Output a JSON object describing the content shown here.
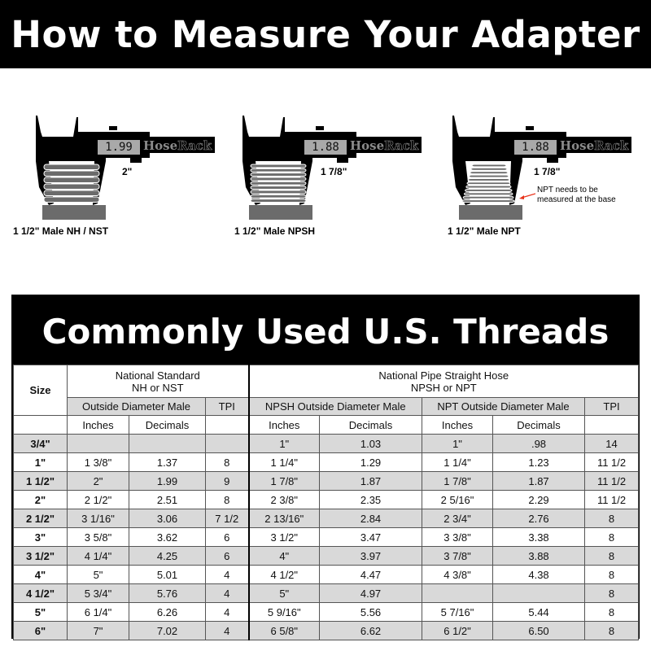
{
  "banner": {
    "title": "How to Measure Your Adapter"
  },
  "calipers": [
    {
      "reading": "1.99",
      "brand_a": "Hose",
      "brand_b": "Rack",
      "measure": "2\"",
      "label": "1 1/2\" Male NH / NST"
    },
    {
      "reading": "1.88",
      "brand_a": "Hose",
      "brand_b": "Rack",
      "measure": "1 7/8\"",
      "label": "1 1/2\" Male NPSH"
    },
    {
      "reading": "1.88",
      "brand_a": "Hose",
      "brand_b": "Rack",
      "measure": "1 7/8\"",
      "label": "1 1/2\" Male NPT",
      "note": "NPT needs to be measured at the base"
    }
  ],
  "colors": {
    "note_arrow": "#e8331c",
    "shade": "#d9d9d9"
  },
  "table": {
    "title": "Commonly Used U.S. Threads",
    "size_header": "Size",
    "group1": {
      "line1": "National Standard",
      "line2": "NH or NST"
    },
    "group2": {
      "line1": "National Pipe Straight Hose",
      "line2": "NPSH or NPT"
    },
    "sub": {
      "od_male": "Outside Diameter Male",
      "tpi1": "TPI",
      "npsh_od": "NPSH Outside Diameter Male",
      "npt_od": "NPT Outside Diameter Male",
      "tpi2": "TPI"
    },
    "units": {
      "in1": "Inches",
      "dec1": "Decimals",
      "in2": "Inches",
      "dec2": "Decimals",
      "in3": "Inches",
      "dec3": "Decimals"
    },
    "rows": [
      [
        "3/4\"",
        "",
        "",
        "",
        "1\"",
        "1.03",
        "1\"",
        ".98",
        "14"
      ],
      [
        "1\"",
        "1 3/8\"",
        "1.37",
        "8",
        "1 1/4\"",
        "1.29",
        "1 1/4\"",
        "1.23",
        "11 1/2"
      ],
      [
        "1 1/2\"",
        "2\"",
        "1.99",
        "9",
        "1 7/8\"",
        "1.87",
        "1 7/8\"",
        "1.87",
        "11 1/2"
      ],
      [
        "2\"",
        "2 1/2\"",
        "2.51",
        "8",
        "2 3/8\"",
        "2.35",
        "2 5/16\"",
        "2.29",
        "11 1/2"
      ],
      [
        "2 1/2\"",
        "3 1/16\"",
        "3.06",
        "7 1/2",
        "2 13/16\"",
        "2.84",
        "2 3/4\"",
        "2.76",
        "8"
      ],
      [
        "3\"",
        "3 5/8\"",
        "3.62",
        "6",
        "3 1/2\"",
        "3.47",
        "3 3/8\"",
        "3.38",
        "8"
      ],
      [
        "3 1/2\"",
        "4 1/4\"",
        "4.25",
        "6",
        "4\"",
        "3.97",
        "3 7/8\"",
        "3.88",
        "8"
      ],
      [
        "4\"",
        "5\"",
        "5.01",
        "4",
        "4 1/2\"",
        "4.47",
        "4 3/8\"",
        "4.38",
        "8"
      ],
      [
        "4 1/2\"",
        "5 3/4\"",
        "5.76",
        "4",
        "5\"",
        "4.97",
        "",
        "",
        "8"
      ],
      [
        "5\"",
        "6 1/4\"",
        "6.26",
        "4",
        "5 9/16\"",
        "5.56",
        "5 7/16\"",
        "5.44",
        "8"
      ],
      [
        "6\"",
        "7\"",
        "7.02",
        "4",
        "6 5/8\"",
        "6.62",
        "6 1/2\"",
        "6.50",
        "8"
      ]
    ]
  }
}
